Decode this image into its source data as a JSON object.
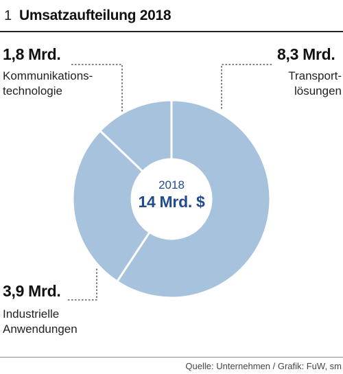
{
  "figure": {
    "number": "1",
    "title": "Umsatzaufteilung 2018",
    "source": "Quelle: Unternehmen / Grafik: FuW, sm"
  },
  "chart_data": {
    "type": "pie",
    "title": "Umsatzaufteilung 2018",
    "center": {
      "year": "2018",
      "total_label": "14 Mrd. $",
      "total_value": 14
    },
    "unit": "Mrd. $",
    "slices": [
      {
        "name": "Transport-\nlösungen",
        "value": 8.3,
        "value_label": "8,3 Mrd."
      },
      {
        "name": "Industrielle\nAnwendungen",
        "value": 3.9,
        "value_label": "3,9 Mrd."
      },
      {
        "name": "Kommunikations-\ntechnologie",
        "value": 1.8,
        "value_label": "1,8 Mrd."
      }
    ],
    "colors": {
      "slice": "#a7c2dd",
      "separator": "#ffffff",
      "center_text": "#224b8f",
      "leader": "#333333"
    }
  }
}
